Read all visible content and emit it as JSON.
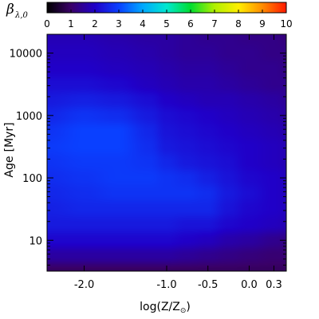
{
  "chart_data": {
    "type": "heatmap",
    "colorbar": {
      "label": "β",
      "label_subscript": "λ,0",
      "range": [
        0,
        10
      ],
      "tick_labels": [
        "0",
        "1",
        "2",
        "3",
        "4",
        "5",
        "6",
        "7",
        "8",
        "9",
        "10"
      ],
      "colors": [
        "#000000",
        "#3a0068",
        "#2000c8",
        "#0a40ff",
        "#00a8ff",
        "#00e8d0",
        "#00dd30",
        "#b0f000",
        "#ffee00",
        "#ff8c00",
        "#ff1800"
      ]
    },
    "xaxis": {
      "label": "log(Z/Z",
      "label_symbol": "⊙",
      "label_close": ")",
      "range": [
        -2.45,
        0.45
      ],
      "tick_values": [
        -2.0,
        -1.0,
        -0.5,
        0.0,
        0.3
      ],
      "tick_labels": [
        "-2.0",
        "-1.0",
        "-0.5",
        "0.0",
        "0.3"
      ]
    },
    "yaxis": {
      "label": "Age",
      "unit": "[Myr]",
      "scale": "log",
      "range": [
        3.2,
        20000
      ],
      "tick_values": [
        10,
        100,
        1000,
        10000
      ],
      "tick_labels": [
        "10",
        "100",
        "1000",
        "10000"
      ]
    },
    "z_grid": {
      "x": [
        -2.45,
        -2.0,
        -1.6,
        -1.2,
        -1.0,
        -0.75,
        -0.5,
        -0.25,
        0.0,
        0.3,
        0.45
      ],
      "log_age": [
        0.5,
        0.75,
        1.0,
        1.25,
        1.5,
        1.75,
        2.0,
        2.25,
        2.5,
        2.75,
        3.0,
        3.25,
        3.5,
        3.75,
        4.0,
        4.3
      ],
      "values": [
        [
          0.9,
          0.9,
          0.9,
          0.9,
          0.9,
          0.9,
          0.9,
          0.9,
          0.9,
          0.9,
          0.9
        ],
        [
          1.6,
          1.6,
          1.6,
          1.6,
          1.6,
          1.5,
          1.4,
          1.3,
          1.2,
          1.1,
          1.1
        ],
        [
          2.1,
          2.1,
          2.1,
          2.1,
          2.1,
          2.0,
          1.9,
          1.7,
          1.6,
          1.4,
          1.3
        ],
        [
          2.4,
          2.4,
          2.4,
          2.4,
          2.4,
          2.3,
          2.3,
          2.1,
          2.0,
          1.9,
          1.8
        ],
        [
          2.5,
          2.6,
          2.6,
          2.6,
          2.6,
          2.6,
          2.6,
          2.3,
          2.1,
          2.0,
          1.9
        ],
        [
          2.6,
          2.7,
          2.8,
          2.8,
          2.8,
          2.8,
          2.7,
          2.4,
          2.2,
          2.0,
          1.9
        ],
        [
          2.7,
          2.8,
          2.9,
          2.9,
          2.8,
          2.7,
          2.5,
          2.3,
          2.1,
          2.0,
          1.9
        ],
        [
          2.8,
          2.9,
          2.9,
          2.8,
          2.6,
          2.4,
          2.3,
          2.2,
          2.0,
          1.9,
          1.8
        ],
        [
          2.9,
          3.0,
          3.0,
          2.7,
          2.4,
          2.3,
          2.2,
          2.1,
          2.0,
          1.9,
          1.8
        ],
        [
          2.8,
          3.0,
          3.0,
          2.6,
          2.3,
          2.2,
          2.1,
          2.0,
          1.9,
          1.8,
          1.7
        ],
        [
          2.6,
          2.8,
          2.7,
          2.4,
          2.2,
          2.1,
          2.0,
          1.9,
          1.8,
          1.7,
          1.6
        ],
        [
          2.4,
          2.5,
          2.4,
          2.2,
          2.0,
          1.9,
          1.8,
          1.8,
          1.7,
          1.6,
          1.5
        ],
        [
          2.2,
          2.2,
          2.1,
          1.9,
          1.8,
          1.7,
          1.7,
          1.6,
          1.5,
          1.4,
          1.4
        ],
        [
          2.0,
          2.0,
          1.9,
          1.8,
          1.7,
          1.6,
          1.6,
          1.5,
          1.4,
          1.4,
          1.3
        ],
        [
          1.9,
          1.9,
          1.8,
          1.7,
          1.6,
          1.5,
          1.5,
          1.4,
          1.4,
          1.3,
          1.3
        ],
        [
          1.8,
          1.8,
          1.7,
          1.6,
          1.6,
          1.5,
          1.4,
          1.4,
          1.3,
          1.3,
          1.2
        ]
      ]
    }
  }
}
